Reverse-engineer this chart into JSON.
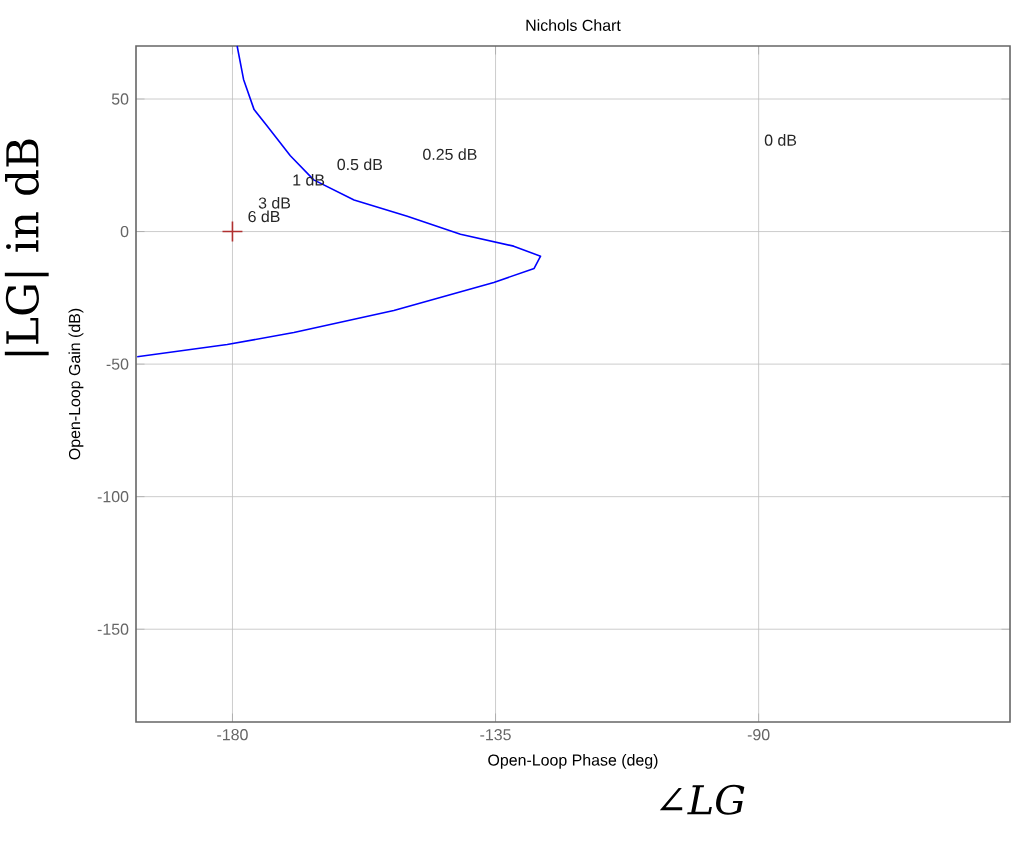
{
  "chart_data": {
    "type": "line",
    "title": "Nichols Chart",
    "xlabel": "Open-Loop Phase (deg)",
    "ylabel": "Open-Loop Gain (dB)",
    "xlim": [
      -196.5,
      -47
    ],
    "ylim": [
      -185,
      70
    ],
    "xticks": [
      -180,
      -135,
      -90
    ],
    "yticks": [
      -150,
      -100,
      -50,
      0,
      50
    ],
    "grid": true,
    "series": [
      {
        "color": "#0000ff",
        "x": [
          -179.2,
          -178.1,
          -176.3,
          -174.1,
          -170.1,
          -166.1,
          -159.2,
          -150.1,
          -141,
          -131.9,
          -127.3,
          -128.4,
          -135.3,
          -152.4,
          -169.5,
          -180.9,
          -196.3
        ],
        "values": [
          70,
          57.4,
          46,
          39.9,
          28.6,
          19.5,
          11.9,
          5.8,
          -1,
          -5.5,
          -9.3,
          -13.9,
          -19.2,
          -29.8,
          -38.1,
          -42.6,
          -47.2
        ]
      },
      {
        "type": "scatter",
        "color": "#b03030",
        "marker": "cross",
        "x": [
          -180
        ],
        "values": [
          0
        ]
      }
    ],
    "annotations": [
      "6 dB",
      "3 dB",
      "1 dB",
      "0.5 dB",
      "0.25 dB",
      "0 dB",
      "|LG| in dB",
      "∠*LG*"
    ]
  }
}
